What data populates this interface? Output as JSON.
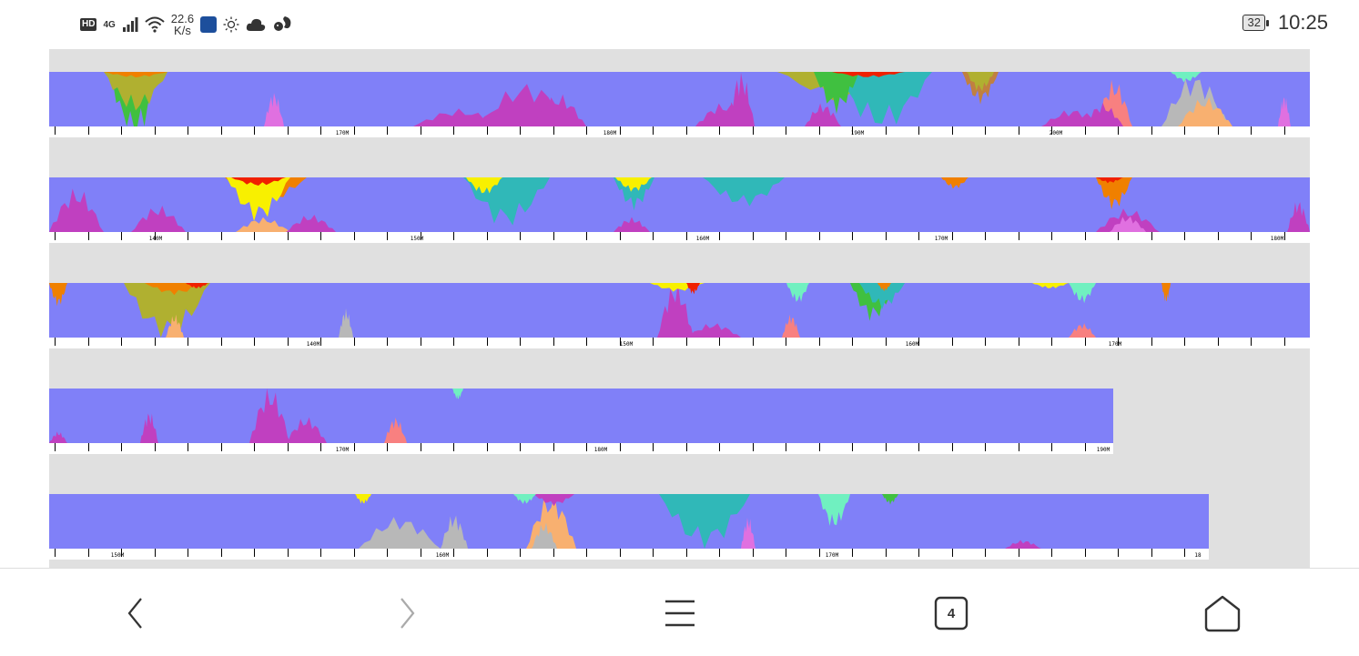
{
  "status_bar": {
    "hd": "HD",
    "network": "4G",
    "speed_value": "22.6",
    "speed_unit": "K/s",
    "battery": "32",
    "time": "10:25",
    "icons": [
      "signal-icon",
      "wifi-icon",
      "app-icon",
      "sun-icon",
      "cloud-icon",
      "squirrel-icon"
    ]
  },
  "tracks": [
    {
      "labels": [
        "170M",
        "180M",
        "190M",
        "200M"
      ]
    },
    {
      "labels": [
        "140M",
        "150M",
        "160M",
        "170M",
        "180M"
      ]
    },
    {
      "labels": [
        "140M",
        "150M",
        "160M",
        "170M"
      ]
    },
    {
      "labels": [
        "170M",
        "180M",
        "190M"
      ]
    },
    {
      "labels": [
        "150M",
        "160M",
        "170M",
        "18"
      ]
    }
  ],
  "colors": {
    "background_fill": "#8080f8",
    "page_bg": "#e0e0e0",
    "magenta": "#c040c0",
    "violet": "#e070e0",
    "yellow": "#f8f000",
    "red": "#f02000",
    "orange": "#f08000",
    "olive": "#b0b030",
    "green": "#40c040",
    "teal": "#30b8b8",
    "aqua": "#70f0c0",
    "salmon": "#f88080",
    "peach": "#f8b070",
    "gray": "#b8b8b8",
    "brown": "#c08040"
  },
  "nav": {
    "tab_count": "4",
    "icons": [
      "back-icon",
      "forward-icon",
      "menu-icon",
      "tabs-icon",
      "home-icon"
    ]
  }
}
